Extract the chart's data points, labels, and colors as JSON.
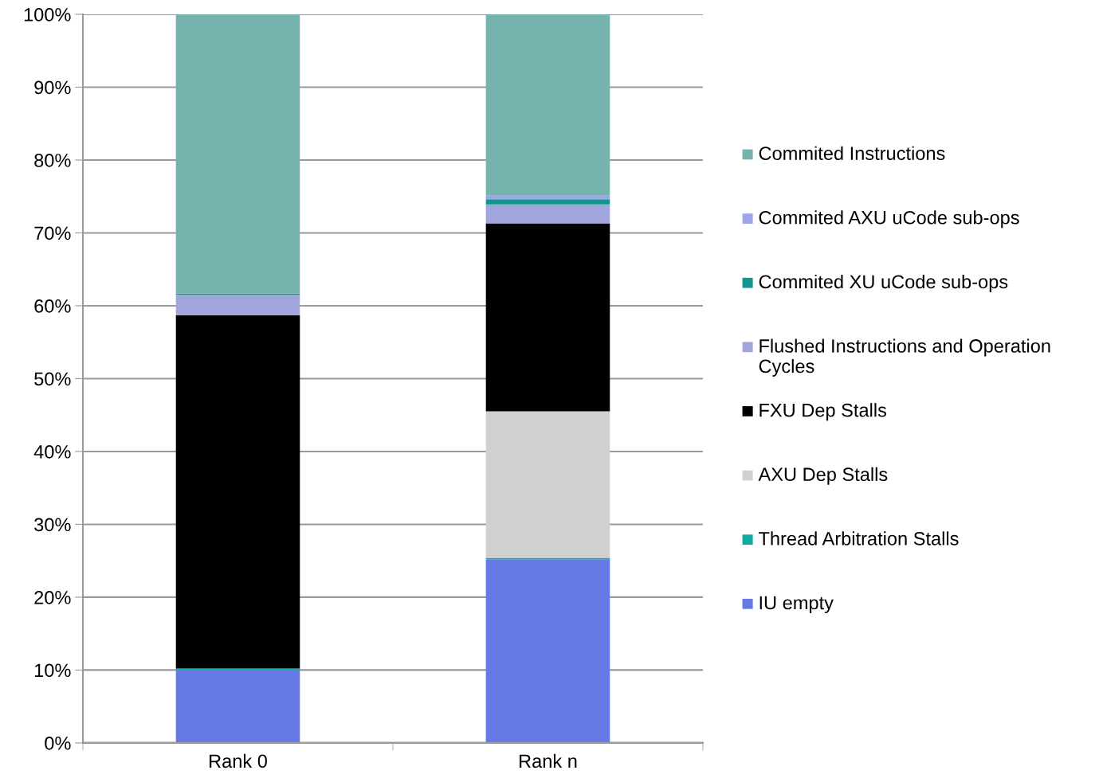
{
  "chart_data": {
    "type": "bar",
    "stacked": true,
    "categories": [
      "Rank 0",
      "Rank n"
    ],
    "series": [
      {
        "name": "IU empty",
        "color": "#6579e6",
        "values": [
          10,
          25.2
        ]
      },
      {
        "name": "Thread Arbitration Stalls",
        "color": "#11aaa0",
        "values": [
          0.2,
          0.2
        ]
      },
      {
        "name": "AXU Dep Stalls",
        "color": "#d0d0d0",
        "values": [
          0,
          20.1
        ]
      },
      {
        "name": "FXU Dep Stalls",
        "color": "#000000",
        "values": [
          48.5,
          25.8
        ]
      },
      {
        "name": "Flushed Instructions and Operation Cycles",
        "color": "#a0a6dc",
        "values": [
          2.8,
          2.6
        ]
      },
      {
        "name": "Commited XU uCode sub-ops",
        "color": "#10968f",
        "values": [
          0.2,
          0.7
        ]
      },
      {
        "name": "Commited AXU uCode sub-ops",
        "color": "#9ea4e8",
        "values": [
          0,
          0.5
        ]
      },
      {
        "name": "Commited Instructions",
        "color": "#76b3ae",
        "values": [
          38.3,
          24.9
        ]
      }
    ],
    "ylim": [
      0,
      100
    ],
    "yticks": [
      {
        "value": 0,
        "label": "0%"
      },
      {
        "value": 10,
        "label": "10%"
      },
      {
        "value": 20,
        "label": "20%"
      },
      {
        "value": 30,
        "label": "30%"
      },
      {
        "value": 40,
        "label": "40%"
      },
      {
        "value": 50,
        "label": "50%"
      },
      {
        "value": 60,
        "label": "60%"
      },
      {
        "value": 70,
        "label": "70%"
      },
      {
        "value": 80,
        "label": "80%"
      },
      {
        "value": 90,
        "label": "90%"
      },
      {
        "value": 100,
        "label": "100%"
      }
    ],
    "grid": "y",
    "legend": "right"
  }
}
